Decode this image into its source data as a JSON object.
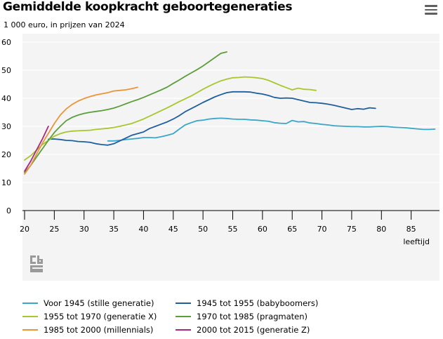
{
  "header": {
    "title": "Gemiddelde koopkracht geboortegeneraties",
    "subtitle": "1 000 euro, in prijzen van 2024",
    "menu_icon": "hamburger-menu-icon"
  },
  "logo_icon": "cbs-logo-icon",
  "chart_data": {
    "type": "line",
    "title": "Gemiddelde koopkracht geboortegeneraties",
    "subtitle": "1 000 euro, in prijzen van 2024",
    "xlabel": "leeftijd",
    "ylabel": "",
    "xlim": [
      20,
      90
    ],
    "ylim": [
      0,
      60
    ],
    "xticks": [
      "20",
      "25",
      "30",
      "35",
      "40",
      "45",
      "50",
      "55",
      "60",
      "65",
      "70",
      "75",
      "80",
      "85"
    ],
    "yticks": [
      "0",
      "10",
      "20",
      "30",
      "40",
      "50",
      "60"
    ],
    "grid": "horizontal",
    "legend_position": "bottom",
    "series": [
      {
        "name": "Voor 1945 (stille generatie)",
        "color": "#3aa6c9",
        "x": [
          34,
          35,
          36,
          37,
          38,
          39,
          40,
          41,
          42,
          43,
          44,
          45,
          46,
          47,
          48,
          49,
          50,
          51,
          52,
          53,
          54,
          55,
          56,
          57,
          58,
          59,
          60,
          61,
          62,
          63,
          64,
          65,
          66,
          67,
          68,
          69,
          70,
          71,
          72,
          73,
          74,
          75,
          76,
          77,
          78,
          79,
          80,
          81,
          82,
          83,
          84,
          85,
          86,
          87,
          88,
          89
        ],
        "y": [
          24.8,
          24.8,
          25.0,
          25.3,
          25.5,
          25.7,
          26.0,
          26.0,
          25.9,
          26.3,
          26.8,
          27.4,
          29.0,
          30.5,
          31.3,
          32.0,
          32.2,
          32.6,
          32.8,
          32.9,
          32.8,
          32.6,
          32.5,
          32.5,
          32.3,
          32.2,
          32.0,
          31.8,
          31.3,
          31.1,
          31.0,
          32.1,
          31.6,
          31.7,
          31.2,
          31.0,
          30.7,
          30.5,
          30.2,
          30.1,
          30.0,
          29.9,
          29.9,
          29.8,
          29.8,
          29.9,
          30.0,
          29.9,
          29.7,
          29.6,
          29.5,
          29.3,
          29.1,
          28.9,
          28.9,
          29.0
        ]
      },
      {
        "name": "1945 tot 1955 (babyboomers)",
        "color": "#1f5f9d",
        "x": [
          24,
          25,
          26,
          27,
          28,
          29,
          30,
          31,
          32,
          33,
          34,
          35,
          36,
          37,
          38,
          39,
          40,
          41,
          42,
          43,
          44,
          45,
          46,
          47,
          48,
          49,
          50,
          51,
          52,
          53,
          54,
          55,
          56,
          57,
          58,
          59,
          60,
          61,
          62,
          63,
          64,
          65,
          66,
          67,
          68,
          69,
          70,
          71,
          72,
          73,
          74,
          75,
          76,
          77,
          78,
          79
        ],
        "y": [
          25.4,
          25.5,
          25.3,
          25.0,
          24.9,
          24.6,
          24.5,
          24.3,
          23.8,
          23.5,
          23.3,
          23.8,
          24.8,
          25.8,
          26.8,
          27.4,
          28.0,
          29.2,
          30.0,
          30.8,
          31.6,
          32.6,
          33.8,
          35.2,
          36.3,
          37.4,
          38.5,
          39.5,
          40.5,
          41.3,
          42.0,
          42.3,
          42.3,
          42.3,
          42.2,
          41.8,
          41.5,
          41.0,
          40.3,
          40.0,
          40.1,
          40.0,
          39.5,
          39.0,
          38.5,
          38.4,
          38.2,
          37.9,
          37.5,
          37.0,
          36.5,
          36.0,
          36.3,
          36.1,
          36.6,
          36.4
        ]
      },
      {
        "name": "1955 tot 1970 (generatie X)",
        "color": "#a8c62e",
        "x": [
          20,
          21,
          22,
          23,
          24,
          25,
          26,
          27,
          28,
          29,
          30,
          31,
          32,
          33,
          34,
          35,
          36,
          37,
          38,
          39,
          40,
          41,
          42,
          43,
          44,
          45,
          46,
          47,
          48,
          49,
          50,
          51,
          52,
          53,
          54,
          55,
          56,
          57,
          58,
          59,
          60,
          61,
          62,
          63,
          64,
          65,
          66,
          67,
          68,
          69
        ],
        "y": [
          18.0,
          19.5,
          21.5,
          23.5,
          25.0,
          26.5,
          27.4,
          28.0,
          28.3,
          28.4,
          28.5,
          28.6,
          28.9,
          29.1,
          29.3,
          29.6,
          30.0,
          30.5,
          31.0,
          31.8,
          32.6,
          33.6,
          34.6,
          35.6,
          36.6,
          37.7,
          38.8,
          39.8,
          40.8,
          42.0,
          43.2,
          44.3,
          45.3,
          46.2,
          46.8,
          47.3,
          47.4,
          47.6,
          47.5,
          47.3,
          47.0,
          46.4,
          45.5,
          44.6,
          43.8,
          43.0,
          43.6,
          43.2,
          43.1,
          42.8
        ]
      },
      {
        "name": "1970 tot 1985 (pragmaten)",
        "color": "#5b9e3b",
        "x": [
          20,
          21,
          22,
          23,
          24,
          25,
          26,
          27,
          28,
          29,
          30,
          31,
          32,
          33,
          34,
          35,
          36,
          37,
          38,
          39,
          40,
          41,
          42,
          43,
          44,
          45,
          46,
          47,
          48,
          49,
          50,
          51,
          52,
          53,
          54
        ],
        "y": [
          13.5,
          16.0,
          19.0,
          22.0,
          25.0,
          27.8,
          30.0,
          32.0,
          33.2,
          34.0,
          34.6,
          35.0,
          35.3,
          35.6,
          36.0,
          36.5,
          37.2,
          38.0,
          38.8,
          39.5,
          40.3,
          41.2,
          42.1,
          43.0,
          44.0,
          45.3,
          46.5,
          47.8,
          49.0,
          50.2,
          51.5,
          53.0,
          54.5,
          56.0,
          56.5
        ]
      },
      {
        "name": "1985 tot 2000 (millennials)",
        "color": "#e9953a",
        "x": [
          20,
          21,
          22,
          23,
          24,
          25,
          26,
          27,
          28,
          29,
          30,
          31,
          32,
          33,
          34,
          35,
          36,
          37,
          38,
          39
        ],
        "y": [
          13.0,
          16.0,
          20.0,
          24.0,
          27.5,
          31.0,
          34.0,
          36.2,
          37.8,
          39.0,
          39.9,
          40.6,
          41.2,
          41.6,
          42.0,
          42.6,
          42.8,
          43.0,
          43.4,
          43.9
        ]
      },
      {
        "name": "2000 tot 2015 (generatie Z)",
        "color": "#a6287f",
        "x": [
          20,
          21,
          22,
          23,
          24
        ],
        "y": [
          14.0,
          17.5,
          21.5,
          25.5,
          30.0
        ]
      }
    ]
  }
}
